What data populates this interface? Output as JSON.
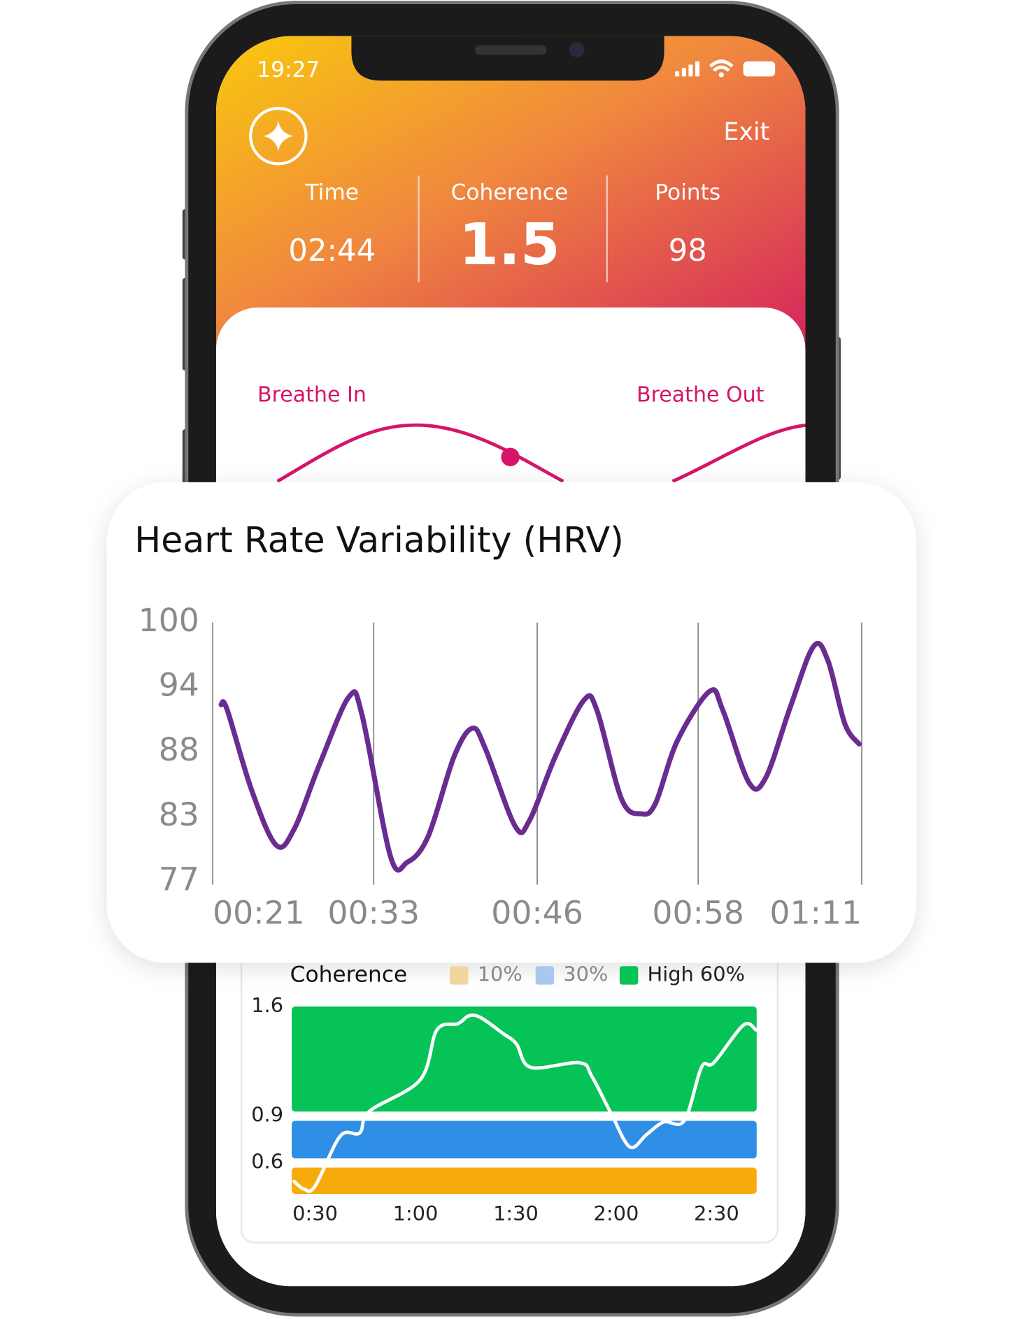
{
  "status_bar": {
    "time": "19:27"
  },
  "header": {
    "exit": "Exit",
    "stats": [
      {
        "label": "Time",
        "value": "02:44"
      },
      {
        "label": "Coherence",
        "value": 1.5
      },
      {
        "label": "Points",
        "value": 98
      }
    ]
  },
  "breath": {
    "in": "Breathe In",
    "out": "Breathe Out"
  },
  "chart_data": [
    {
      "type": "line",
      "title": "Heart Rate Variability (HRV)",
      "color": "#6a2c91",
      "x": [
        21.65,
        22.1,
        24.0,
        25.9,
        27.3,
        29.2,
        31.5,
        32.5,
        34.7,
        36.0,
        37.6,
        39.6,
        41.0,
        42.0,
        44.3,
        45.4,
        47.4,
        49.6,
        50.6,
        52.5,
        54.0,
        55.1,
        56.8,
        59.3,
        60.3,
        62.3,
        63.6,
        65.5,
        67.3,
        68.4,
        69.7,
        70.8
      ],
      "values": [
        92.7,
        92.3,
        85.1,
        80.2,
        81.7,
        87.3,
        93.4,
        91.8,
        79.2,
        78.7,
        81.0,
        88.1,
        90.6,
        88.8,
        81.9,
        82.4,
        88.1,
        93.1,
        92.2,
        84.3,
        83.0,
        83.9,
        89.5,
        93.9,
        92.2,
        85.8,
        86.2,
        92.5,
        97.9,
        96.6,
        91.0,
        89.2
      ],
      "xlim": [
        21,
        71
      ],
      "xticks": [
        {
          "value": 21,
          "label": "00:21"
        },
        {
          "value": 33.4,
          "label": "00:33"
        },
        {
          "value": 46,
          "label": "00:46"
        },
        {
          "value": 58.4,
          "label": "00:58"
        },
        {
          "value": 71,
          "label": "01:11"
        }
      ],
      "ylim": [
        77,
        100
      ],
      "yticks": [
        77,
        {
          "value": 82.75,
          "label": "83"
        },
        {
          "value": 88.5,
          "label": "88"
        },
        {
          "value": 94.25,
          "label": "94"
        },
        100
      ],
      "grid": "x"
    },
    {
      "type": "line",
      "title": "Coherence",
      "color": "#ffffff",
      "x": [
        23.7,
        26.7,
        30.0,
        37.5,
        43.3,
        46.3,
        61.4,
        66.4,
        72.7,
        75.9,
        79.4,
        86.0,
        90.2,
        94.5,
        109.1,
        112.8,
        118.6,
        124.1,
        129.1,
        134.2,
        140.4,
        145.5,
        149.2,
        158.0,
        161.8
      ],
      "values": [
        0.48,
        0.43,
        0.45,
        0.77,
        0.79,
        0.93,
        1.13,
        1.45,
        1.49,
        1.54,
        1.53,
        1.43,
        1.36,
        1.21,
        1.24,
        1.15,
        0.91,
        0.7,
        0.78,
        0.86,
        0.87,
        1.21,
        1.24,
        1.48,
        1.45
      ],
      "xlim": [
        23,
        162
      ],
      "xticks": [
        {
          "value": 30,
          "label": "0:30"
        },
        {
          "value": 60,
          "label": "1:00"
        },
        {
          "value": 90,
          "label": "1:30"
        },
        {
          "value": 120,
          "label": "2:00"
        },
        {
          "value": 150,
          "label": "2:30"
        }
      ],
      "ylim": [
        0.4,
        1.6
      ],
      "yticks": [
        0.6,
        0.9,
        1.6
      ],
      "grid": "none",
      "bands": [
        {
          "name": "10%",
          "color": "#f7ab0a",
          "legend_color": "#f2d6a0",
          "range": [
            0.4,
            0.6
          ]
        },
        {
          "name": "30%",
          "color": "#2f8ee6",
          "legend_color": "#a8c8ee",
          "range": [
            0.6,
            0.9
          ]
        },
        {
          "name": "High 60%",
          "color": "#05c356",
          "legend_color": "#05c356",
          "range": [
            0.9,
            1.6
          ]
        }
      ]
    }
  ]
}
